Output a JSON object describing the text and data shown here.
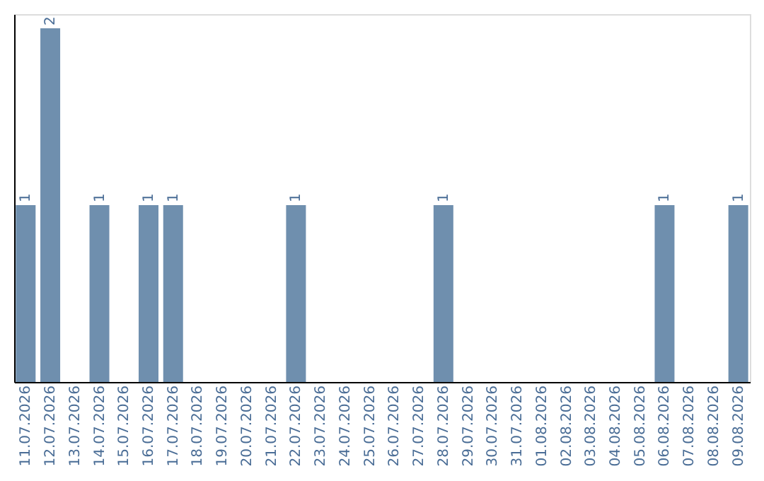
{
  "chart_data": {
    "type": "bar",
    "categories": [
      "11.07.2026",
      "12.07.2026",
      "13.07.2026",
      "14.07.2026",
      "15.07.2026",
      "16.07.2026",
      "17.07.2026",
      "18.07.2026",
      "19.07.2026",
      "20.07.2026",
      "21.07.2026",
      "22.07.2026",
      "23.07.2026",
      "24.07.2026",
      "25.07.2026",
      "26.07.2026",
      "27.07.2026",
      "28.07.2026",
      "29.07.2026",
      "30.07.2026",
      "31.07.2026",
      "01.08.2026",
      "02.08.2026",
      "03.08.2026",
      "04.08.2026",
      "05.08.2026",
      "06.08.2026",
      "07.08.2026",
      "08.08.2026",
      "09.08.2026"
    ],
    "values": [
      1,
      2,
      0,
      1,
      0,
      1,
      1,
      0,
      0,
      0,
      0,
      1,
      0,
      0,
      0,
      0,
      0,
      1,
      0,
      0,
      0,
      0,
      0,
      0,
      0,
      0,
      1,
      0,
      0,
      1
    ],
    "value_labels": [
      "1",
      "2",
      null,
      "1",
      null,
      "1",
      "1",
      null,
      null,
      null,
      null,
      "1",
      null,
      null,
      null,
      null,
      null,
      "1",
      null,
      null,
      null,
      null,
      null,
      null,
      null,
      null,
      "1",
      null,
      null,
      "1"
    ],
    "color": "#6f8fae",
    "ylim": [
      0,
      2.08
    ],
    "tick_labels": "x",
    "grid": false
  }
}
